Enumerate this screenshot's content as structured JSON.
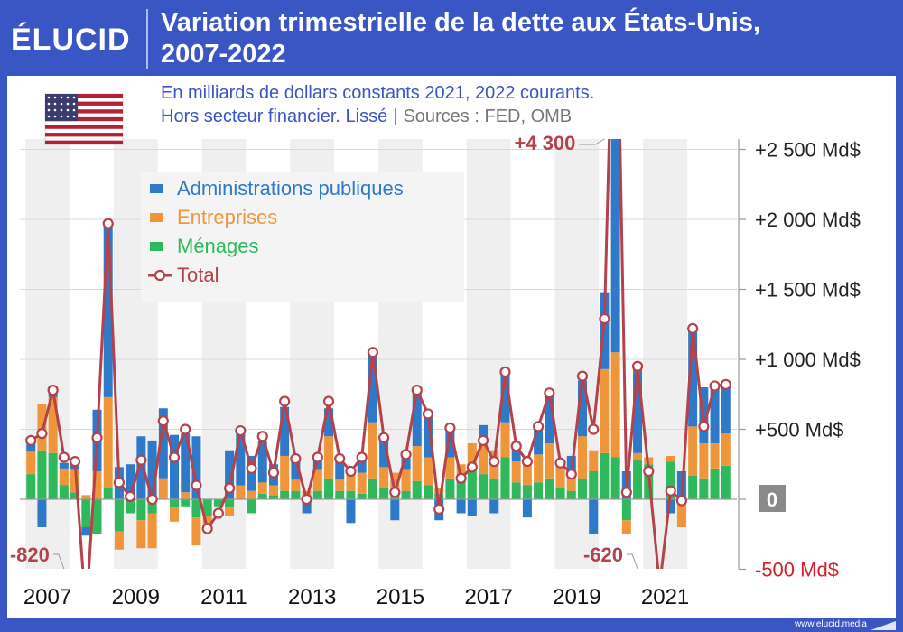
{
  "header": {
    "logo_text": "ÉLUCID",
    "title_line1": "Variation trimestrielle de la dette aux États-Unis,",
    "title_line2": "2007-2022",
    "subtitle_line1": "En milliards de dollars constants 2021, 2022 courants.",
    "subtitle_line2": "Hors secteur financier. Lissé",
    "subtitle_separator": "|",
    "subtitle_sources": "Sources : FED, OMB"
  },
  "flag_icon": "us-flag-icon",
  "footer": {
    "url": "www.elucid.media"
  },
  "colors": {
    "brand": "#3a55c4",
    "administrations": "#2f79c9",
    "entreprises": "#f0963a",
    "menages": "#2fb85c",
    "total": "#b5424a",
    "negative_label": "#d4202a",
    "shade": "#efefef"
  },
  "chart_data": {
    "type": "bar",
    "stacked": true,
    "with_total_line": true,
    "x_tick_labels": [
      "2007",
      "2009",
      "2011",
      "2013",
      "2015",
      "2017",
      "2019",
      "2021"
    ],
    "y_tick_labels": [
      "+2 500 Md$",
      "+2 000 Md$",
      "+1 500 Md$",
      "+1 000 Md$",
      "+500 Md$",
      "0",
      "-500 Md$"
    ],
    "y_ticks": [
      2500,
      2000,
      1500,
      1000,
      500,
      0,
      -500
    ],
    "ylim": [
      -500,
      2600
    ],
    "legend_position": "top-left",
    "series": [
      {
        "name": "Administrations publiques",
        "color": "#2f79c9"
      },
      {
        "name": "Entreprises",
        "color": "#f0963a"
      },
      {
        "name": "Ménages",
        "color": "#2fb85c"
      },
      {
        "name": "Total",
        "color": "#b5424a"
      }
    ],
    "annotations": [
      {
        "label": "+4 300",
        "year": 2020.0,
        "value": 4300
      },
      {
        "label": "-820",
        "year": 2007.75,
        "value": -820
      },
      {
        "label": "-620",
        "year": 2020.75,
        "value": -620
      }
    ],
    "quarters": [
      {
        "year": 2007.0,
        "gov": 80,
        "ent": 160,
        "hh": 180,
        "total": 420
      },
      {
        "year": 2007.25,
        "gov": -200,
        "ent": 330,
        "hh": 350,
        "total": 470
      },
      {
        "year": 2007.5,
        "gov": 80,
        "ent": 400,
        "hh": 330,
        "total": 780
      },
      {
        "year": 2007.75,
        "gov": 40,
        "ent": 120,
        "hh": 100,
        "total": 300
      },
      {
        "year": 2008.0,
        "gov": 80,
        "ent": 160,
        "hh": 50,
        "total": 270
      },
      {
        "year": 2008.25,
        "gov": -60,
        "ent": 30,
        "hh": -200,
        "total": -820
      },
      {
        "year": 2008.5,
        "gov": 440,
        "ent": 200,
        "hh": -250,
        "total": 440
      },
      {
        "year": 2008.75,
        "gov": 1250,
        "ent": 650,
        "hh": 80,
        "total": 1970
      },
      {
        "year": 2009.0,
        "gov": 230,
        "ent": -130,
        "hh": -230,
        "total": 120
      },
      {
        "year": 2009.25,
        "gov": 250,
        "ent": 0,
        "hh": -100,
        "total": 20
      },
      {
        "year": 2009.5,
        "gov": 450,
        "ent": -200,
        "hh": -150,
        "total": 280
      },
      {
        "year": 2009.75,
        "gov": 420,
        "ent": -250,
        "hh": -100,
        "total": 0
      },
      {
        "year": 2010.0,
        "gov": 500,
        "ent": 150,
        "hh": 0,
        "total": 560
      },
      {
        "year": 2010.25,
        "gov": 460,
        "ent": -100,
        "hh": -60,
        "total": 300
      },
      {
        "year": 2010.5,
        "gov": 420,
        "ent": 50,
        "hh": -50,
        "total": 500
      },
      {
        "year": 2010.75,
        "gov": 450,
        "ent": -200,
        "hh": -130,
        "total": 100
      },
      {
        "year": 2011.0,
        "gov": 0,
        "ent": -80,
        "hh": -120,
        "total": -210
      },
      {
        "year": 2011.25,
        "gov": 0,
        "ent": 0,
        "hh": -50,
        "total": -100
      },
      {
        "year": 2011.5,
        "gov": 350,
        "ent": -60,
        "hh": -60,
        "total": 80
      },
      {
        "year": 2011.75,
        "gov": 380,
        "ent": 100,
        "hh": 0,
        "total": 490
      },
      {
        "year": 2012.0,
        "gov": 250,
        "ent": 60,
        "hh": -100,
        "total": 220
      },
      {
        "year": 2012.25,
        "gov": 300,
        "ent": 80,
        "hh": 40,
        "total": 450
      },
      {
        "year": 2012.5,
        "gov": 150,
        "ent": 70,
        "hh": 30,
        "total": 190
      },
      {
        "year": 2012.75,
        "gov": 350,
        "ent": 250,
        "hh": 60,
        "total": 700
      },
      {
        "year": 2013.0,
        "gov": 150,
        "ent": 80,
        "hh": 60,
        "total": 290
      },
      {
        "year": 2013.25,
        "gov": -100,
        "ent": 30,
        "hh": 30,
        "total": 0
      },
      {
        "year": 2013.5,
        "gov": 100,
        "ent": 150,
        "hh": 60,
        "total": 300
      },
      {
        "year": 2013.75,
        "gov": 200,
        "ent": 300,
        "hh": 150,
        "total": 700
      },
      {
        "year": 2014.0,
        "gov": 150,
        "ent": 80,
        "hh": 60,
        "total": 290
      },
      {
        "year": 2014.25,
        "gov": -170,
        "ent": 150,
        "hh": 60,
        "total": 200
      },
      {
        "year": 2014.5,
        "gov": 100,
        "ent": 150,
        "hh": 40,
        "total": 300
      },
      {
        "year": 2014.75,
        "gov": 500,
        "ent": 400,
        "hh": 150,
        "total": 1050
      },
      {
        "year": 2015.0,
        "gov": 200,
        "ent": 150,
        "hh": 80,
        "total": 440
      },
      {
        "year": 2015.25,
        "gov": -150,
        "ent": 150,
        "hh": 40,
        "total": 50
      },
      {
        "year": 2015.5,
        "gov": 100,
        "ent": 150,
        "hh": 60,
        "total": 320
      },
      {
        "year": 2015.75,
        "gov": 400,
        "ent": 250,
        "hh": 130,
        "total": 780
      },
      {
        "year": 2016.0,
        "gov": 300,
        "ent": 200,
        "hh": 100,
        "total": 610
      },
      {
        "year": 2016.25,
        "gov": -150,
        "ent": 40,
        "hh": 40,
        "total": -70
      },
      {
        "year": 2016.5,
        "gov": 200,
        "ent": 150,
        "hh": 150,
        "total": 510
      },
      {
        "year": 2016.75,
        "gov": -100,
        "ent": 100,
        "hh": 150,
        "total": 150
      },
      {
        "year": 2017.0,
        "gov": -120,
        "ent": 150,
        "hh": 250,
        "total": 230
      },
      {
        "year": 2017.25,
        "gov": 100,
        "ent": 250,
        "hh": 180,
        "total": 420
      },
      {
        "year": 2017.5,
        "gov": -100,
        "ent": 200,
        "hh": 150,
        "total": 270
      },
      {
        "year": 2017.75,
        "gov": 350,
        "ent": 250,
        "hh": 300,
        "total": 910
      },
      {
        "year": 2018.0,
        "gov": 100,
        "ent": 150,
        "hh": 120,
        "total": 380
      },
      {
        "year": 2018.25,
        "gov": -130,
        "ent": 150,
        "hh": 100,
        "total": 270
      },
      {
        "year": 2018.5,
        "gov": 200,
        "ent": 200,
        "hh": 120,
        "total": 520
      },
      {
        "year": 2018.75,
        "gov": 350,
        "ent": 250,
        "hh": 150,
        "total": 760
      },
      {
        "year": 2019.0,
        "gov": 50,
        "ent": 150,
        "hh": 80,
        "total": 260
      },
      {
        "year": 2019.25,
        "gov": 150,
        "ent": 100,
        "hh": 60,
        "total": 180
      },
      {
        "year": 2019.5,
        "gov": 400,
        "ent": 300,
        "hh": 150,
        "total": 880
      },
      {
        "year": 2019.75,
        "gov": -250,
        "ent": 150,
        "hh": 200,
        "total": 500
      },
      {
        "year": 2020.0,
        "gov": 550,
        "ent": 600,
        "hh": 330,
        "total": 1290
      },
      {
        "year": 2020.25,
        "gov": 1850,
        "ent": 750,
        "hh": 300,
        "total": 4300
      },
      {
        "year": 2020.5,
        "gov": 200,
        "ent": -100,
        "hh": -150,
        "total": 50
      },
      {
        "year": 2020.75,
        "gov": 600,
        "ent": 50,
        "hh": 280,
        "total": 950
      },
      {
        "year": 2021.0,
        "gov": 0,
        "ent": 50,
        "hh": 250,
        "total": 200
      },
      {
        "year": 2021.25,
        "gov": 0,
        "ent": 0,
        "hh": 0,
        "total": -620
      },
      {
        "year": 2021.5,
        "gov": -100,
        "ent": 40,
        "hh": 270,
        "total": 60
      },
      {
        "year": 2021.75,
        "gov": 200,
        "ent": -200,
        "hh": 0,
        "total": -10
      },
      {
        "year": 2022.0,
        "gov": 700,
        "ent": 350,
        "hh": 170,
        "total": 1220
      },
      {
        "year": 2022.25,
        "gov": 400,
        "ent": 250,
        "hh": 150,
        "total": 520
      },
      {
        "year": 2022.5,
        "gov": 400,
        "ent": 180,
        "hh": 220,
        "total": 810
      },
      {
        "year": 2022.75,
        "gov": 350,
        "ent": 230,
        "hh": 240,
        "total": 820
      }
    ]
  }
}
